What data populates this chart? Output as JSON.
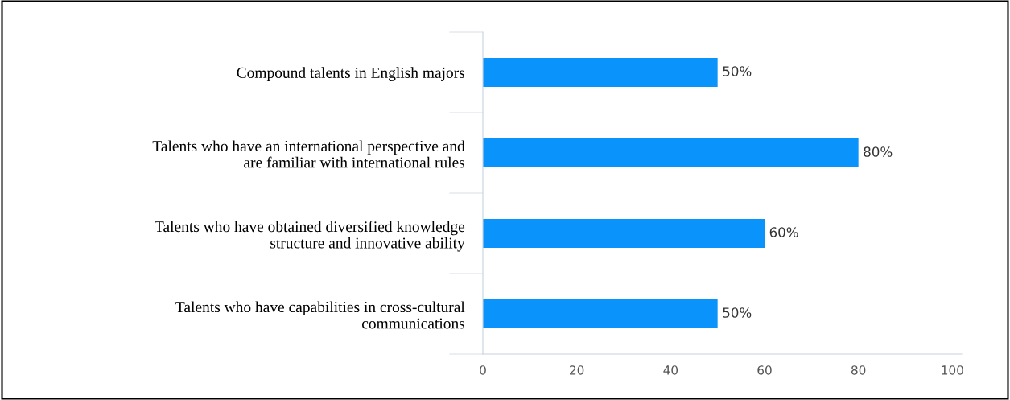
{
  "chart_data": {
    "type": "bar",
    "orientation": "horizontal",
    "categories": [
      "Compound talents in English majors",
      "Talents who have an international perspective and are familiar with international rules",
      "Talents who have obtained diversified knowledge structure and innovative ability",
      "Talents who have capabilities in cross-cultural communications"
    ],
    "values": [
      50,
      80,
      60,
      50
    ],
    "value_labels": [
      "50%",
      "80%",
      "60%",
      "50%"
    ],
    "color": "#0a93fb",
    "xlim": [
      0,
      102
    ],
    "xticks": [
      0,
      20,
      40,
      60,
      80,
      100
    ],
    "grid": false
  }
}
